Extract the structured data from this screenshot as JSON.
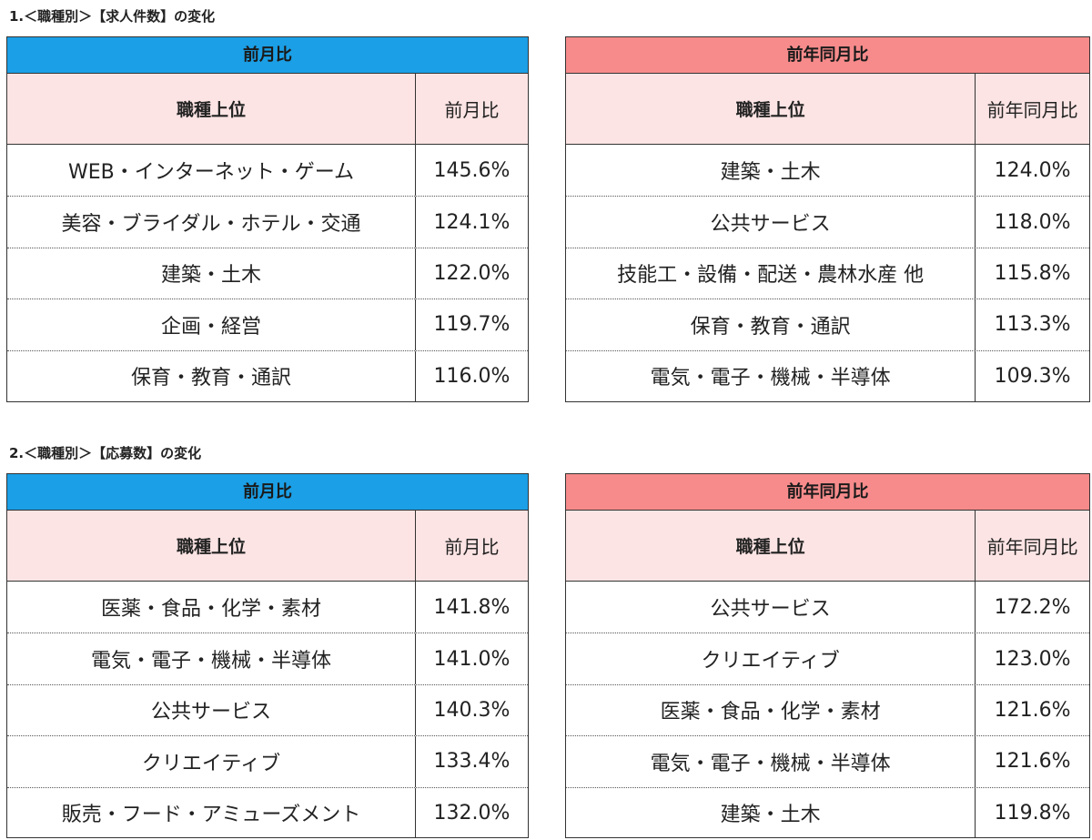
{
  "section1": {
    "title": "1.＜職種別＞【求人件数】の変化",
    "mom": {
      "title": "前月比",
      "col_job": "職種上位",
      "col_value": "前月比",
      "rows": [
        {
          "job": "WEB・インターネット・ゲーム",
          "value": "145.6%"
        },
        {
          "job": "美容・ブライダル・ホテル・交通",
          "value": "124.1%"
        },
        {
          "job": "建築・土木",
          "value": "122.0%"
        },
        {
          "job": "企画・経営",
          "value": "119.7%"
        },
        {
          "job": "保育・教育・通訳",
          "value": "116.0%"
        }
      ]
    },
    "yoy": {
      "title": "前年同月比",
      "col_job": "職種上位",
      "col_value": "前年同月比",
      "rows": [
        {
          "job": "建築・土木",
          "value": "124.0%"
        },
        {
          "job": "公共サービス",
          "value": "118.0%"
        },
        {
          "job": "技能工・設備・配送・農林水産 他",
          "value": "115.8%"
        },
        {
          "job": "保育・教育・通訳",
          "value": "113.3%"
        },
        {
          "job": "電気・電子・機械・半導体",
          "value": "109.3%"
        }
      ]
    }
  },
  "section2": {
    "title": "2.＜職種別＞【応募数】の変化",
    "mom": {
      "title": "前月比",
      "col_job": "職種上位",
      "col_value": "前月比",
      "rows": [
        {
          "job": "医薬・食品・化学・素材",
          "value": "141.8%"
        },
        {
          "job": "電気・電子・機械・半導体",
          "value": "141.0%"
        },
        {
          "job": "公共サービス",
          "value": "140.3%"
        },
        {
          "job": "クリエイティブ",
          "value": "133.4%"
        },
        {
          "job": "販売・フード・アミューズメント",
          "value": "132.0%"
        }
      ]
    },
    "yoy": {
      "title": "前年同月比",
      "col_job": "職種上位",
      "col_value": "前年同月比",
      "rows": [
        {
          "job": "公共サービス",
          "value": "172.2%"
        },
        {
          "job": "クリエイティブ",
          "value": "123.0%"
        },
        {
          "job": "医薬・食品・化学・素材",
          "value": "121.6%"
        },
        {
          "job": "電気・電子・機械・半導体",
          "value": "121.6%"
        },
        {
          "job": "建築・土木",
          "value": "119.8%"
        }
      ]
    }
  },
  "colors": {
    "mom_header": "#1b9fe6",
    "yoy_header": "#f78b8b",
    "column_header_bg": "#fde4e4"
  }
}
